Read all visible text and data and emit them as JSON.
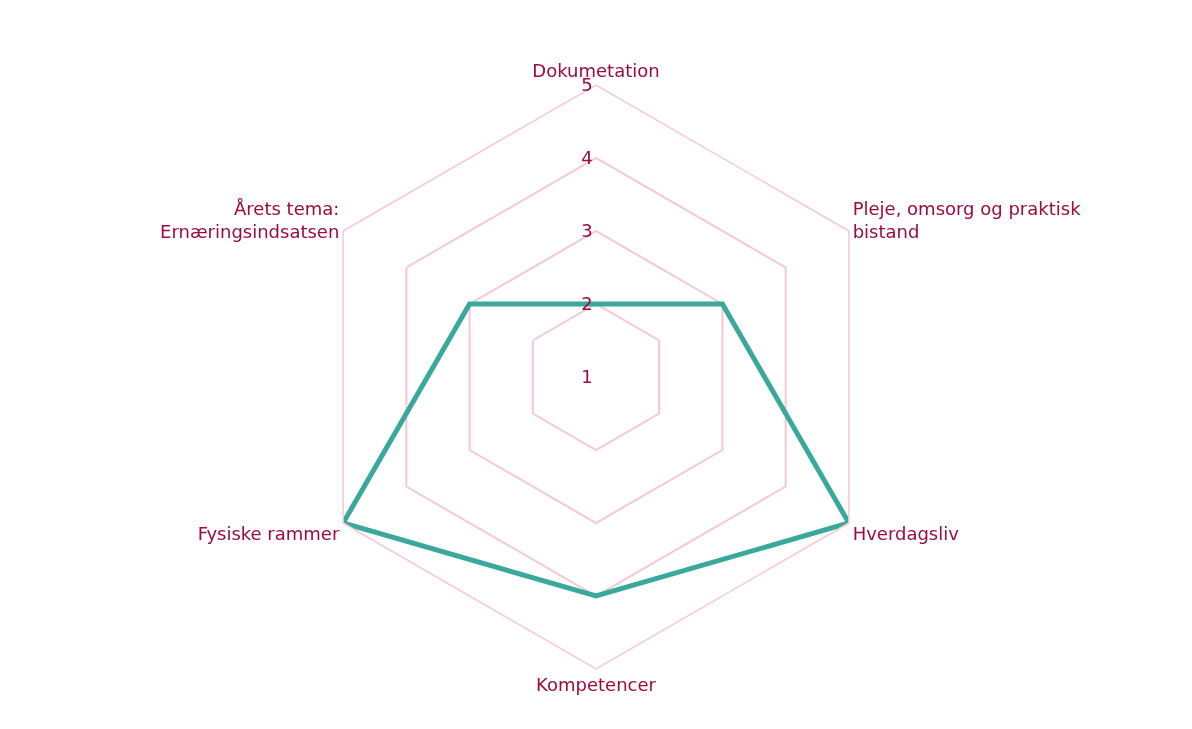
{
  "chart_data": {
    "type": "radar",
    "categories": [
      "Dokumetation",
      "Pleje, omsorg og praktisk\nbistand",
      "Hverdagsliv",
      "Kompetencer",
      "Fysiske rammer",
      "Årets tema:\nErnæringsindsatsen"
    ],
    "series": [
      {
        "color": "#3aa89a",
        "values": [
          2,
          3,
          5,
          4,
          5,
          3
        ]
      }
    ],
    "ylim": [
      1,
      5
    ],
    "yticks": [
      1,
      2,
      3,
      4,
      5
    ],
    "grid": true,
    "marker": "none",
    "line_style": "solid"
  }
}
